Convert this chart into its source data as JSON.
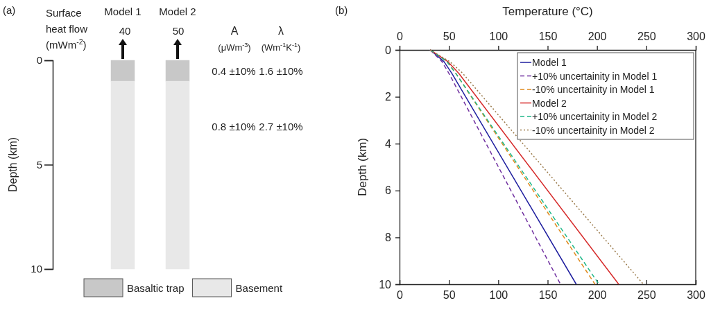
{
  "chart_data": [
    {
      "type": "bar",
      "title": "(a)",
      "ylabel": "Depth (km)",
      "categories": [
        "Model 1",
        "Model 2"
      ],
      "stacked": true,
      "series": [
        {
          "name": "Basaltic trap",
          "color": "#c8c8c8",
          "values": [
            1,
            1
          ]
        },
        {
          "name": "Basement",
          "color": "#e8e8e8",
          "values": [
            9,
            9
          ]
        }
      ],
      "ylim": [
        10,
        0
      ],
      "yticks": [
        0,
        5,
        10
      ],
      "legend": "bottom",
      "annotations": [
        "Surface\nheat flow\n(mWm$^{-2}$)",
        "40",
        "50",
        "A\n(μWm$^{-3}$)",
        "λ\n(Wm$^{-1}$K$^{-1}$)",
        "0.4 ±10%",
        "1.6 ±10%",
        "0.8 ±10%",
        "2.7 ±10%"
      ]
    },
    {
      "type": "line",
      "title": "(b)",
      "x2label": "Temperature (°C)",
      "ylabel": "Depth (km)",
      "xlim": [
        0,
        300
      ],
      "xticks": [
        0,
        50,
        100,
        150,
        200,
        250,
        300
      ],
      "x2lim": [
        0,
        300
      ],
      "x2ticks": [
        0,
        50,
        100,
        150,
        200,
        250,
        300
      ],
      "ylim": [
        10,
        0
      ],
      "yticks": [
        0,
        2,
        4,
        6,
        8,
        10
      ],
      "legend": "top right",
      "series": [
        {
          "name": "Model 1",
          "color": "#1f1f9f",
          "line_style": "solid",
          "x": [
            31,
            45,
            53,
            179
          ],
          "values": [
            0,
            0.5,
            1,
            10
          ]
        },
        {
          "name": "+10% uncertainity in Model 1",
          "color": "#7030a0",
          "line_style": "dashed",
          "x": [
            31,
            43,
            50,
            163
          ],
          "values": [
            0,
            0.5,
            1,
            10
          ]
        },
        {
          "name": "-10% uncertainity in Model 1",
          "color": "#e08a1e",
          "line_style": "dashed",
          "x": [
            31,
            48,
            57,
            198
          ],
          "values": [
            0,
            0.5,
            1,
            10
          ]
        },
        {
          "name": "Model 2",
          "color": "#d62a2a",
          "line_style": "solid",
          "x": [
            31,
            49,
            60,
            222
          ],
          "values": [
            0,
            0.5,
            1,
            10
          ]
        },
        {
          "name": "+10% uncertainity in Model 2",
          "color": "#1fb889",
          "line_style": "dashed",
          "x": [
            31,
            48,
            57,
            202
          ],
          "values": [
            0,
            0.5,
            1,
            10
          ]
        },
        {
          "name": "-10% uncertainity in Model 2",
          "color": "#9a7a4a",
          "line_style": "dotted",
          "x": [
            31,
            51,
            64,
            247
          ],
          "values": [
            0,
            0.5,
            1,
            10
          ]
        }
      ]
    }
  ]
}
